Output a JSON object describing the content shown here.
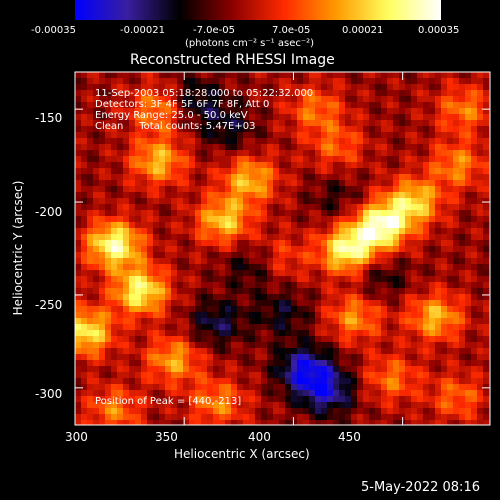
{
  "chart_data": {
    "type": "heatmap",
    "title": "Reconstructed RHESSI Image",
    "xlabel": "Heliocentric X (arcsec)",
    "ylabel": "Heliocentric Y (arcsec)",
    "xlim": [
      300,
      490
    ],
    "ylim": [
      -320,
      -130
    ],
    "x_ticks": [
      300,
      350,
      400,
      450
    ],
    "x_tick_labels": [
      "300",
      "350",
      "400",
      "450"
    ],
    "y_ticks": [
      -150,
      -200,
      -250,
      -300
    ],
    "y_tick_labels": [
      "-150",
      "-200",
      "-250",
      "-300"
    ],
    "colorbar": {
      "range": [
        -0.00035,
        0.00035
      ],
      "ticks": [
        -0.00035,
        -0.00021,
        -7e-05,
        7e-05,
        0.00021,
        0.00035
      ],
      "tick_labels": [
        "-0.00035",
        "-0.00021",
        "-7.0e-05",
        "7.0e-05",
        "0.00021",
        "0.00035"
      ],
      "unit_label": "(photons cm⁻² s⁻¹ asec⁻²)",
      "colors": [
        "#0000ff",
        "#3a1fa0",
        "#000000",
        "#8b0000",
        "#ff2a00",
        "#ff9a00",
        "#ffff60",
        "#ffffff"
      ]
    },
    "annotations": [
      "11-Sep-2003 05:18:28.000 to 05:22:32.000",
      "Detectors: 3F 4F 5F 6F 7F 8F, Att 0",
      "Energy Range: 25.0 - 50.0 keV",
      "Clean     Total counts: 5.47E+03"
    ],
    "peak_label": "Position of Peak = [440,-213]",
    "peak": [
      440,
      -213
    ],
    "hot_regions": [
      {
        "x": 318,
        "y": -223,
        "value": 0.00033
      },
      {
        "x": 330,
        "y": -248,
        "value": 0.0003
      },
      {
        "x": 305,
        "y": -270,
        "value": 0.00028
      },
      {
        "x": 345,
        "y": -285,
        "value": 0.0002
      },
      {
        "x": 440,
        "y": -213,
        "value": 0.00035
      },
      {
        "x": 425,
        "y": -226,
        "value": 0.00032
      },
      {
        "x": 455,
        "y": -200,
        "value": 0.00025
      },
      {
        "x": 368,
        "y": -210,
        "value": 0.00024
      },
      {
        "x": 380,
        "y": -188,
        "value": 0.00022
      },
      {
        "x": 338,
        "y": -178,
        "value": 0.00022
      },
      {
        "x": 338,
        "y": -150,
        "value": 0.00018
      },
      {
        "x": 410,
        "y": -150,
        "value": 0.00015
      },
      {
        "x": 420,
        "y": -170,
        "value": 0.00013
      },
      {
        "x": 478,
        "y": -150,
        "value": 0.00016
      },
      {
        "x": 475,
        "y": -180,
        "value": 0.00017
      },
      {
        "x": 465,
        "y": -262,
        "value": 0.00022
      },
      {
        "x": 428,
        "y": -262,
        "value": 0.00018
      },
      {
        "x": 445,
        "y": -295,
        "value": 0.00015
      },
      {
        "x": 475,
        "y": -305,
        "value": 0.00014
      },
      {
        "x": 365,
        "y": -308,
        "value": 0.00017
      },
      {
        "x": 318,
        "y": -312,
        "value": 0.00016
      },
      {
        "x": 395,
        "y": -230,
        "value": 0.0001
      }
    ],
    "cold_regions": [
      {
        "x": 405,
        "y": -290,
        "value": -0.00025
      },
      {
        "x": 415,
        "y": -302,
        "value": -0.00022
      },
      {
        "x": 365,
        "y": -265,
        "value": -0.00015
      },
      {
        "x": 370,
        "y": -160,
        "value": -0.00012
      },
      {
        "x": 355,
        "y": -145,
        "value": -0.00014
      },
      {
        "x": 395,
        "y": -260,
        "value": -0.00012
      },
      {
        "x": 380,
        "y": -235,
        "value": -0.0001
      },
      {
        "x": 440,
        "y": -240,
        "value": -0.0001
      },
      {
        "x": 420,
        "y": -198,
        "value": -8e-05
      }
    ]
  },
  "footer_date": "5-May-2022 08:16"
}
